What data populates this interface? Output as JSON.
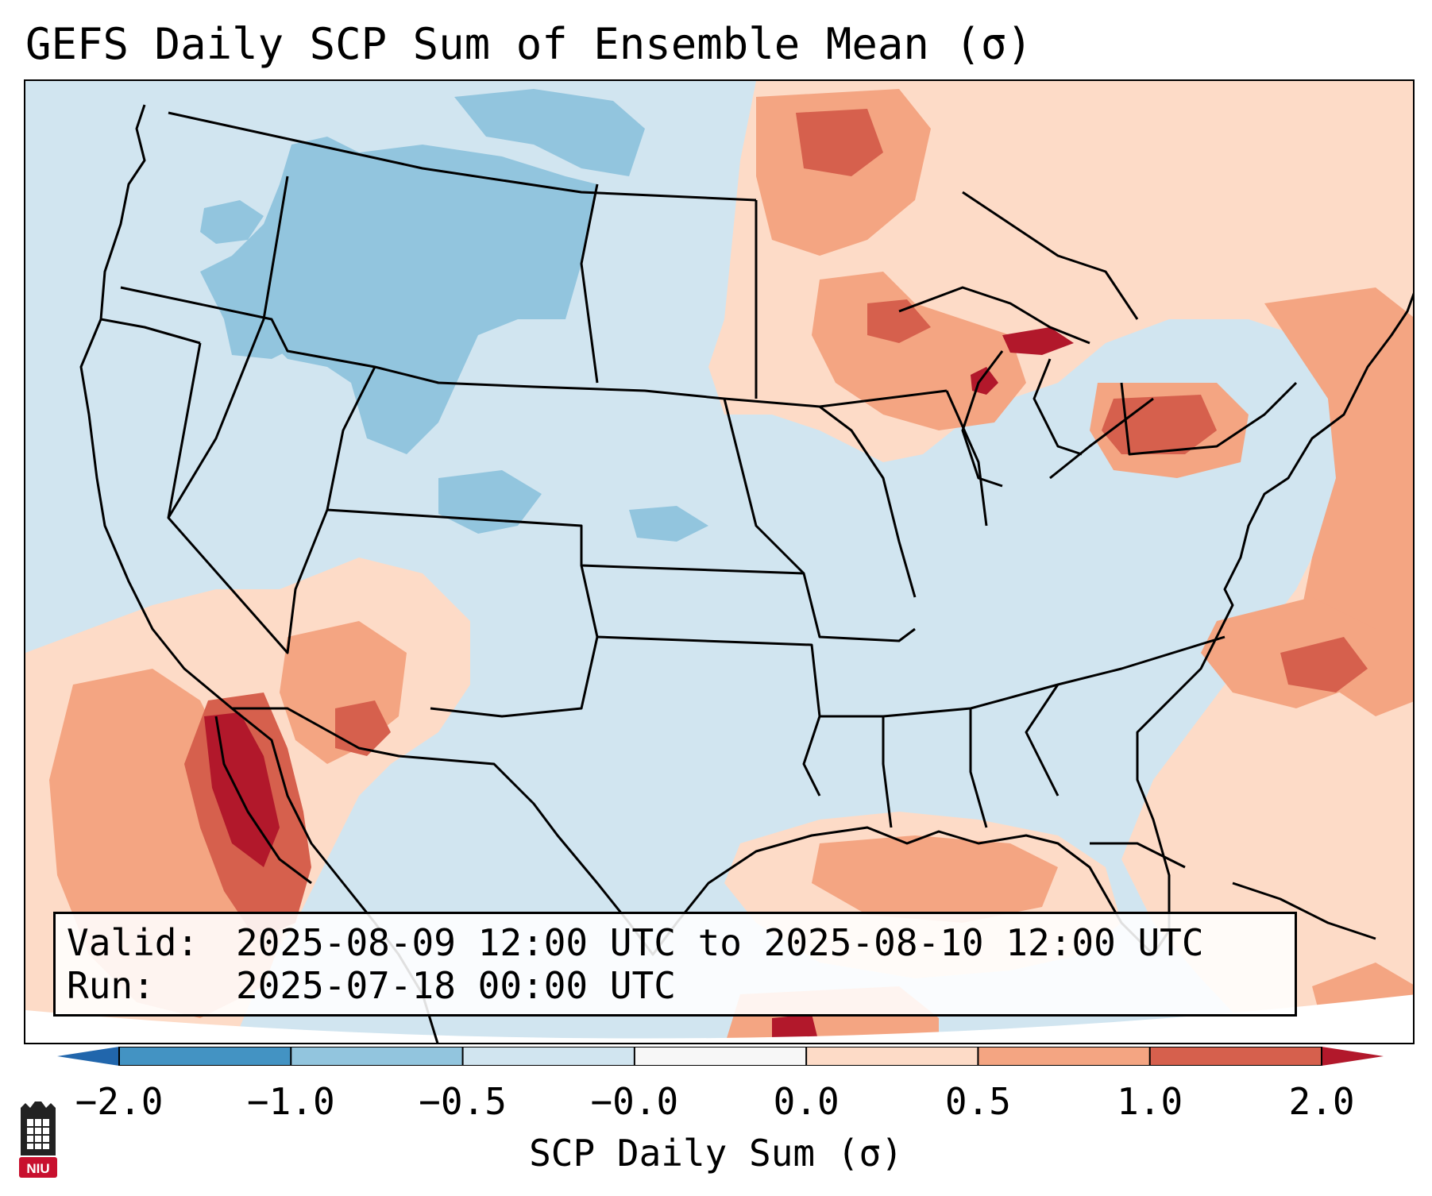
{
  "title": "GEFS Daily SCP Sum of Ensemble Mean (σ)",
  "infobox": {
    "valid_label": "Valid:",
    "valid_value": "2025-08-09 12:00 UTC to 2025-08-10 12:00 UTC",
    "run_label": "Run:",
    "run_value": "2025-07-18 00:00 UTC"
  },
  "colorbar": {
    "label": "SCP Daily Sum (σ)",
    "ticks": [
      "−2.0",
      "−1.0",
      "−0.5",
      "−0.0",
      "0.0",
      "0.5",
      "1.0",
      "2.0"
    ],
    "colors": [
      "#4393c3",
      "#92c5de",
      "#d1e5f0",
      "#f7f7f7",
      "#fddbc7",
      "#f4a582",
      "#d6604d"
    ],
    "under_color": "#2166ac",
    "over_color": "#b2182b"
  },
  "logo": {
    "text": "NIU"
  },
  "palette": {
    "ocean_background": "#d1e5f0",
    "negative": "#92c5de",
    "light_positive": "#fddbc7",
    "positive": "#f4a582",
    "strong_positive": "#d6604d",
    "extreme_positive": "#b2182b"
  }
}
